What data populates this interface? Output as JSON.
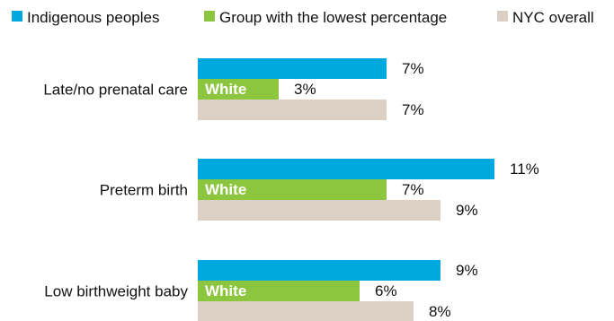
{
  "chart_data": {
    "type": "bar",
    "orientation": "horizontal",
    "categories": [
      "Late/no prenatal care",
      "Preterm birth",
      "Low birthweight baby"
    ],
    "series": [
      {
        "name": "Indigenous peoples",
        "color": "#00a8e0",
        "values": [
          7,
          11,
          9
        ],
        "value_labels": [
          "7%",
          "11%",
          "9%"
        ]
      },
      {
        "name": "Group with the lowest percentage",
        "color": "#8cc63f",
        "values": [
          3,
          7,
          6
        ],
        "value_labels": [
          "3%",
          "7%",
          "6%"
        ],
        "bar_labels": [
          "White",
          "White",
          "White"
        ]
      },
      {
        "name": "NYC overall",
        "color": "#dccfc4",
        "values": [
          7,
          9,
          8
        ],
        "value_labels": [
          "7%",
          "9%",
          "8%"
        ]
      }
    ],
    "unit": "%",
    "xlim": [
      0,
      11
    ],
    "legend_position": "top",
    "grid": false,
    "title": "",
    "xlabel": "",
    "ylabel": ""
  }
}
